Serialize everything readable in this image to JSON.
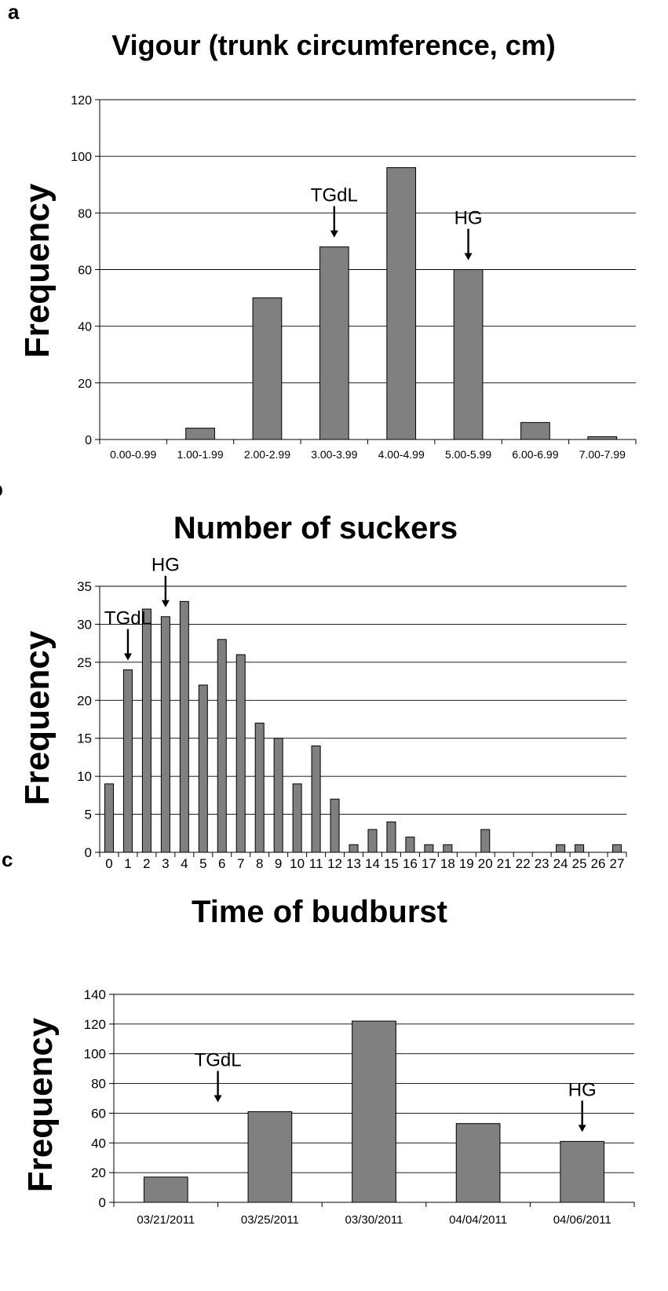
{
  "chart_data": [
    {
      "panel": "a",
      "type": "bar",
      "title": "Vigour (trunk circumference, cm)",
      "xlabel": "",
      "ylabel": "Frequency",
      "ylim": [
        0,
        120
      ],
      "yticks": [
        0,
        20,
        40,
        60,
        80,
        100,
        120
      ],
      "grid": true,
      "categories": [
        "0.00-0.99",
        "1.00-1.99",
        "2.00-2.99",
        "3.00-3.99",
        "4.00-4.99",
        "5.00-5.99",
        "6.00-6.99",
        "7.00-7.99"
      ],
      "values": [
        0,
        4,
        50,
        68,
        96,
        60,
        6,
        1
      ],
      "annotations": [
        {
          "text": "TGdL",
          "category": "3.00-3.99",
          "value": 68
        },
        {
          "text": "HG",
          "category": "5.00-5.99",
          "value": 60
        }
      ]
    },
    {
      "panel": "b",
      "type": "bar",
      "title": "Number of suckers",
      "xlabel": "",
      "ylabel": "Frequency",
      "ylim": [
        0,
        35
      ],
      "yticks": [
        0,
        5,
        10,
        15,
        20,
        25,
        30,
        35
      ],
      "grid": true,
      "categories": [
        "0",
        "1",
        "2",
        "3",
        "4",
        "5",
        "6",
        "7",
        "8",
        "9",
        "10",
        "11",
        "12",
        "13",
        "14",
        "15",
        "16",
        "17",
        "18",
        "19",
        "20",
        "21",
        "22",
        "23",
        "24",
        "25",
        "26",
        "27"
      ],
      "values": [
        9,
        24,
        32,
        31,
        33,
        22,
        28,
        26,
        17,
        15,
        9,
        14,
        7,
        1,
        3,
        4,
        2,
        1,
        1,
        0,
        3,
        0,
        0,
        0,
        1,
        1,
        0,
        1
      ],
      "annotations": [
        {
          "text": "TGdL",
          "category": "1",
          "value": 24
        },
        {
          "text": "HG",
          "category": "3",
          "value": 31
        }
      ]
    },
    {
      "panel": "c",
      "type": "bar",
      "title": "Time of budburst",
      "xlabel": "",
      "ylabel": "Frequency",
      "ylim": [
        0,
        140
      ],
      "yticks": [
        0,
        20,
        40,
        60,
        80,
        100,
        120,
        140
      ],
      "grid": true,
      "categories": [
        "03/21/2011",
        "03/25/2011",
        "03/30/2011",
        "04/04/2011",
        "04/06/2011"
      ],
      "values": [
        17,
        61,
        122,
        53,
        41
      ],
      "annotations": [
        {
          "text": "TGdL",
          "category": "03/25/2011",
          "value": 61
        },
        {
          "text": "HG",
          "category": "04/06/2011",
          "value": 41
        }
      ]
    }
  ]
}
